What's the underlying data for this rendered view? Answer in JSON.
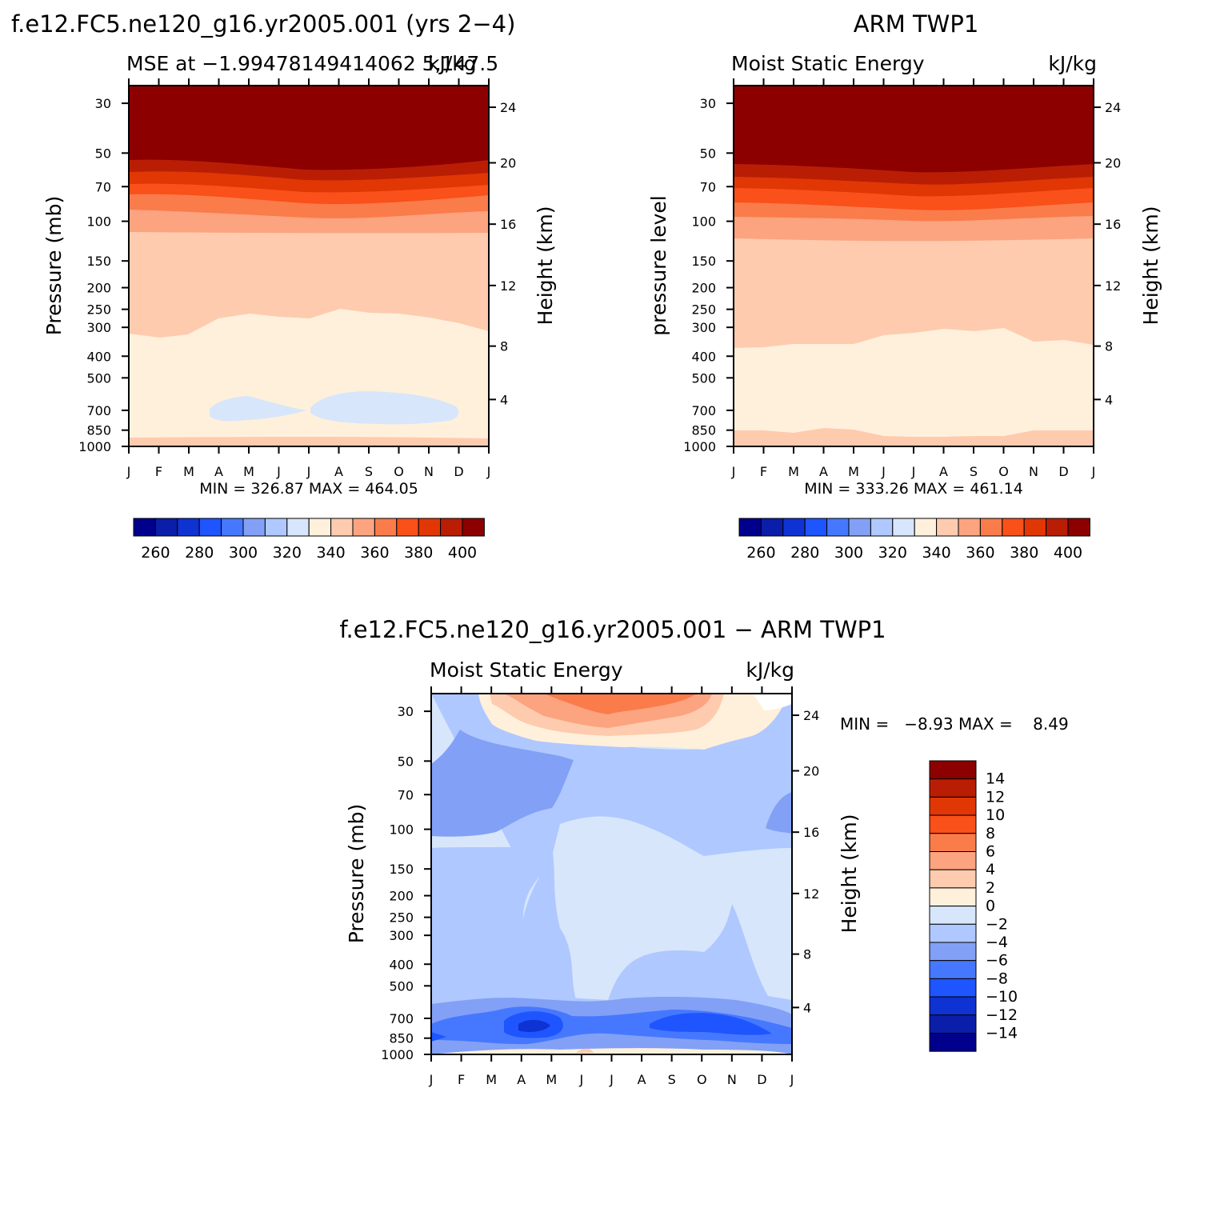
{
  "chart_data": [
    {
      "type": "heatmap",
      "id": "model",
      "title": "f.e12.FC5.ne120_g16.yr2005.001 (yrs 2−4)",
      "left_label": "MSE at −1.99478149414062 5,147.5",
      "left_label_display": "MSE at −1.99478149414062 5,147.5",
      "right_label": "kJ/kg",
      "ylabel": "Pressure (mb)",
      "ylabel_right": "Height (km)",
      "stats": "MIN = 326.87 MAX = 464.05",
      "min": 326.87,
      "max": 464.05,
      "x_ticks": [
        "J",
        "F",
        "M",
        "A",
        "M",
        "J",
        "J",
        "A",
        "S",
        "O",
        "N",
        "D",
        "J"
      ],
      "y_ticks": [
        "30",
        "50",
        "70",
        "100",
        "150",
        "200",
        "250",
        "300",
        "400",
        "500",
        "700",
        "850",
        "1000"
      ],
      "height_ticks": [
        "24",
        "20",
        "16",
        "12",
        "8",
        "4"
      ],
      "colorbar_labels": [
        "260",
        "280",
        "300",
        "320",
        "340",
        "360",
        "380",
        "400"
      ],
      "contour_levels": [
        250,
        260,
        270,
        280,
        290,
        300,
        310,
        320,
        330,
        340,
        350,
        360,
        370,
        380,
        390,
        400
      ],
      "layers": [
        {
          "range": "330-340 (near surface)",
          "pressure_boundary_mb": [
            900,
            900,
            900,
            900,
            900,
            900,
            900,
            900,
            900,
            900,
            900,
            900,
            900
          ]
        },
        {
          "range": "340-350 top boundary (mb)",
          "pressure_boundary_mb": [
            320,
            330,
            320,
            280,
            260,
            270,
            280,
            250,
            260,
            260,
            270,
            290,
            320
          ]
        },
        {
          "range": "350-360 top boundary (mb)",
          "pressure_boundary_mb": [
            115,
            115,
            115,
            115,
            115,
            115,
            115,
            115,
            115,
            115,
            115,
            115,
            115
          ]
        },
        {
          "range": "360-370 top boundary (mb)",
          "pressure_boundary_mb": [
            86,
            86,
            86,
            88,
            90,
            93,
            95,
            94,
            93,
            93,
            90,
            88,
            86
          ]
        },
        {
          "range": "370-380 top boundary (mb)",
          "pressure_boundary_mb": [
            72,
            72,
            72,
            73,
            74,
            76,
            78,
            78,
            78,
            76,
            74,
            73,
            72
          ]
        },
        {
          "range": "380-390 top boundary (mb)",
          "pressure_boundary_mb": [
            63,
            63,
            63,
            64,
            65,
            66,
            67,
            67,
            67,
            66,
            64,
            63,
            63
          ]
        },
        {
          "range": "390-400 top boundary (mb)",
          "pressure_boundary_mb": [
            56,
            54,
            54,
            55,
            56,
            58,
            59,
            59,
            59,
            57,
            56,
            55,
            55
          ]
        }
      ],
      "min_pockets": [
        {
          "value_range": "320-330",
          "months": "Apr-Jun",
          "pressure_mb": [
            620,
            770
          ]
        },
        {
          "value_range": "320-330",
          "months": "Jul-Nov",
          "pressure_mb": [
            600,
            780
          ]
        }
      ]
    },
    {
      "type": "heatmap",
      "id": "obs",
      "title": "ARM TWP1",
      "left_label": "Moist Static Energy",
      "right_label": "kJ/kg",
      "ylabel": "pressure level",
      "ylabel_right": "Height (km)",
      "stats": "MIN = 333.26 MAX = 461.14",
      "min": 333.26,
      "max": 461.14,
      "x_ticks": [
        "J",
        "F",
        "M",
        "A",
        "M",
        "J",
        "J",
        "A",
        "S",
        "O",
        "N",
        "D",
        "J"
      ],
      "y_ticks": [
        "30",
        "50",
        "70",
        "100",
        "150",
        "200",
        "250",
        "300",
        "400",
        "500",
        "700",
        "850",
        "1000"
      ],
      "height_ticks": [
        "24",
        "20",
        "16",
        "12",
        "8",
        "4"
      ],
      "colorbar_labels": [
        "260",
        "280",
        "300",
        "320",
        "340",
        "360",
        "380",
        "400"
      ],
      "layers": [
        {
          "range": "340-350 near surface top (mb)",
          "pressure_boundary_mb": [
            830,
            830,
            840,
            830,
            830,
            850,
            850,
            850,
            850,
            850,
            840,
            830,
            830
          ]
        },
        {
          "range": "350-360 top boundary (mb)",
          "pressure_boundary_mb": [
            380,
            380,
            370,
            360,
            360,
            330,
            320,
            300,
            310,
            300,
            350,
            340,
            360
          ]
        },
        {
          "range": "360-370 top boundary (mb)",
          "pressure_boundary_mb": [
            125,
            125,
            125,
            125,
            125,
            125,
            125,
            125,
            125,
            125,
            125,
            125,
            125
          ]
        },
        {
          "range": "370-380 top boundary (mb)",
          "pressure_boundary_mb": [
            92,
            92,
            93,
            94,
            95,
            98,
            100,
            102,
            100,
            98,
            96,
            94,
            92
          ]
        },
        {
          "range": "380-390 top boundary (mb)",
          "pressure_boundary_mb": [
            76,
            76,
            77,
            78,
            80,
            81,
            83,
            84,
            83,
            82,
            80,
            78,
            77
          ]
        },
        {
          "range": "390-400 top boundary (mb)",
          "pressure_boundary_mb": [
            66,
            66,
            67,
            68,
            69,
            70,
            72,
            73,
            72,
            70,
            69,
            68,
            67
          ]
        },
        {
          "range": "400+ top boundary (mb)",
          "pressure_boundary_mb": [
            56,
            57,
            58,
            59,
            60,
            61,
            62,
            63,
            62,
            61,
            60,
            58,
            57
          ]
        }
      ]
    },
    {
      "type": "heatmap",
      "id": "diff",
      "title": "f.e12.FC5.ne120_g16.yr2005.001 − ARM TWP1",
      "left_label": "Moist Static Energy",
      "right_label": "kJ/kg",
      "ylabel": "Pressure (mb)",
      "ylabel_right": "Height (km)",
      "stats": "MIN =   −8.93 MAX =    8.49",
      "min": -8.93,
      "max": 8.49,
      "x_ticks": [
        "J",
        "F",
        "M",
        "A",
        "M",
        "J",
        "J",
        "A",
        "S",
        "O",
        "N",
        "D",
        "J"
      ],
      "y_ticks": [
        "30",
        "50",
        "70",
        "100",
        "150",
        "200",
        "250",
        "300",
        "400",
        "500",
        "700",
        "850",
        "1000"
      ],
      "height_ticks": [
        "24",
        "20",
        "16",
        "12",
        "8",
        "4"
      ],
      "colorbar_labels": [
        "14",
        "12",
        "10",
        "8",
        "6",
        "4",
        "2",
        "0",
        "−2",
        "−4",
        "−6",
        "−8",
        "−10",
        "−12",
        "−14"
      ]
    }
  ],
  "palette": {
    "diverging_16": [
      "#00008c",
      "#0a1eaa",
      "#0f32d2",
      "#1e55ff",
      "#4678ff",
      "#82a0f5",
      "#afc8ff",
      "#d7e6fa",
      "#fff0dc",
      "#fecbaf",
      "#fca380",
      "#fa7c4b",
      "#fa5019",
      "#e13705",
      "#b91e05",
      "#8c0000"
    ]
  }
}
